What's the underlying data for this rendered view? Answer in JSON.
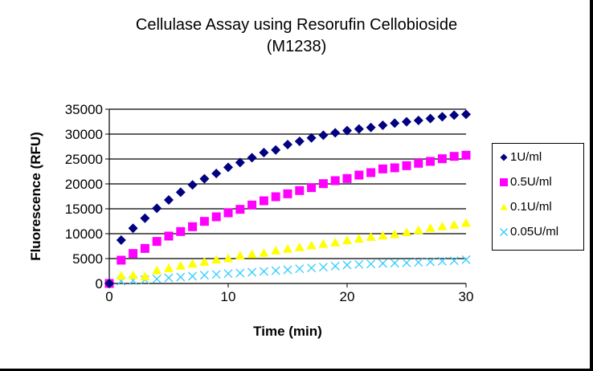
{
  "chart_data": {
    "type": "scatter",
    "title": "Cellulase Assay using Resorufin Cellobioside (M1238)",
    "title_lines": [
      "Cellulase Assay using Resorufin Cellobioside",
      "(M1238)"
    ],
    "xlabel": "Time (min)",
    "ylabel": "Fluorescence (RFU)",
    "xlim": [
      0,
      30
    ],
    "ylim": [
      0,
      35000
    ],
    "xticks": [
      0,
      10,
      20,
      30
    ],
    "yticks": [
      0,
      5000,
      10000,
      15000,
      20000,
      25000,
      30000,
      35000
    ],
    "grid": "horizontal",
    "legend_position": "right",
    "x": [
      0,
      1,
      2,
      3,
      4,
      5,
      6,
      7,
      8,
      9,
      10,
      11,
      12,
      13,
      14,
      15,
      16,
      17,
      18,
      19,
      20,
      21,
      22,
      23,
      24,
      25,
      26,
      27,
      28,
      29,
      30
    ],
    "series": [
      {
        "name": "1U/ml",
        "marker": "diamond",
        "color": "#000080",
        "values": [
          0,
          8700,
          11080,
          13110,
          15110,
          16770,
          18330,
          19790,
          21020,
          22100,
          23330,
          24300,
          25270,
          26290,
          26820,
          27900,
          28550,
          29240,
          29780,
          30270,
          30700,
          31020,
          31340,
          31770,
          32200,
          32470,
          32740,
          33120,
          33490,
          33820,
          33980
        ]
      },
      {
        "name": "0.5U/ml",
        "marker": "square",
        "color": "#ff00ff",
        "values": [
          0,
          4680,
          6020,
          7040,
          8440,
          9520,
          10430,
          11400,
          12470,
          13390,
          14190,
          14890,
          15750,
          16610,
          17420,
          18010,
          18660,
          19250,
          20050,
          20650,
          21080,
          21770,
          22260,
          23010,
          23230,
          23660,
          24140,
          24520,
          25050,
          25530,
          25760
        ]
      },
      {
        "name": "0.1U/ml",
        "marker": "triangle",
        "color": "#ffff00",
        "values": [
          0,
          1560,
          1670,
          1400,
          2630,
          3060,
          3550,
          3980,
          4350,
          4780,
          5050,
          5590,
          5860,
          6130,
          6610,
          6940,
          7260,
          7630,
          7960,
          8230,
          8660,
          8980,
          9350,
          9620,
          9890,
          10270,
          10700,
          11130,
          11450,
          11770,
          12150
        ]
      },
      {
        "name": "0.05U/ml",
        "marker": "x",
        "color": "#33ccff",
        "values": [
          0,
          480,
          590,
          750,
          910,
          1130,
          1290,
          1450,
          1670,
          1830,
          1990,
          2100,
          2260,
          2420,
          2580,
          2740,
          2960,
          3120,
          3280,
          3490,
          3710,
          3820,
          3920,
          4030,
          4090,
          4140,
          4250,
          4350,
          4460,
          4570,
          4780
        ]
      }
    ]
  }
}
